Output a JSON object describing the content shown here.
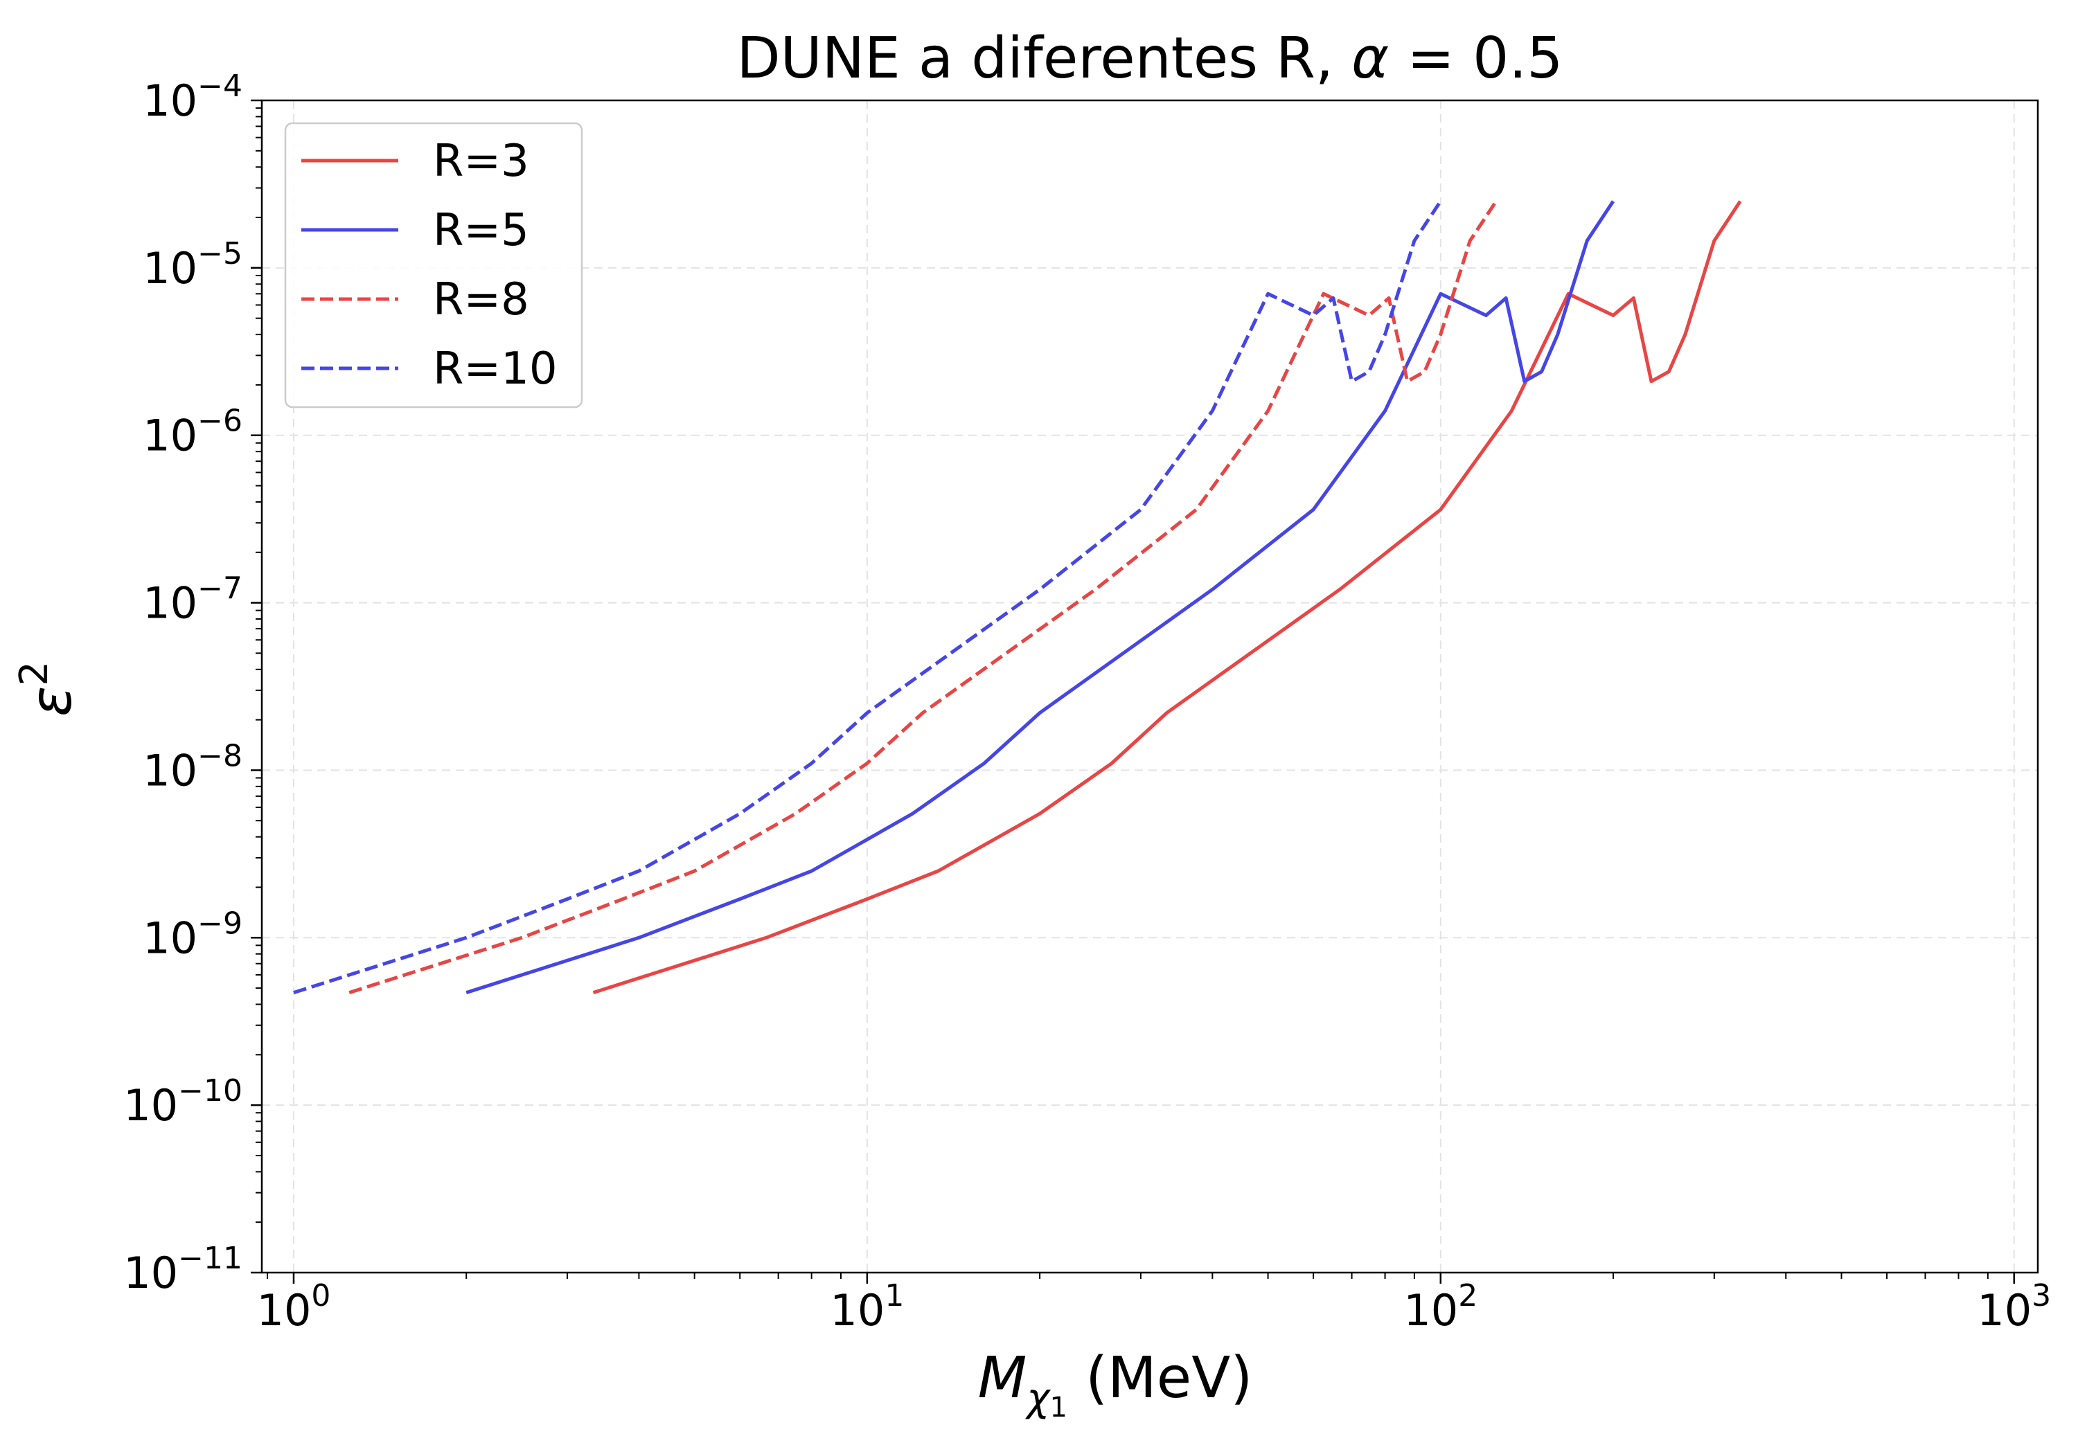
{
  "chart_data": {
    "type": "line",
    "title": "DUNE a diferentes R, α = 0.5",
    "title_text": "DUNE a diferentes R, ",
    "title_alpha": "α",
    "title_value": " = 0.5",
    "xlabel_main": "M",
    "xlabel_sub": "χ",
    "xlabel_subsub": "1",
    "xlabel_unit": " (MeV)",
    "ylabel_main": "ε",
    "ylabel_sup": "2",
    "xscale": "log",
    "yscale": "log",
    "xlim": [
      0.88,
      1100
    ],
    "ylim": [
      1e-11,
      0.0001
    ],
    "xticks": [
      {
        "value": 1,
        "base": "10",
        "exp": "0"
      },
      {
        "value": 10,
        "base": "10",
        "exp": "1"
      },
      {
        "value": 100,
        "base": "10",
        "exp": "2"
      },
      {
        "value": 1000,
        "base": "10",
        "exp": "3"
      }
    ],
    "yticks": [
      {
        "value": 1e-11,
        "base": "10",
        "exp": "−11"
      },
      {
        "value": 1e-10,
        "base": "10",
        "exp": "−10"
      },
      {
        "value": 1e-09,
        "base": "10",
        "exp": "−9"
      },
      {
        "value": 1e-08,
        "base": "10",
        "exp": "−8"
      },
      {
        "value": 1e-07,
        "base": "10",
        "exp": "−7"
      },
      {
        "value": 1e-06,
        "base": "10",
        "exp": "−6"
      },
      {
        "value": 1e-05,
        "base": "10",
        "exp": "−5"
      },
      {
        "value": 0.0001,
        "base": "10",
        "exp": "−4"
      }
    ],
    "grid": true,
    "legend_position": "upper-left",
    "series": [
      {
        "name": "R=3",
        "color": "#e84545",
        "dashed": false,
        "points": [
          [
            3.33,
            4.7e-10
          ],
          [
            6.67,
            1e-09
          ],
          [
            10,
            1.7e-09
          ],
          [
            13.3,
            2.5e-09
          ],
          [
            20,
            5.5e-09
          ],
          [
            26.7,
            1.1e-08
          ],
          [
            33.3,
            2.2e-08
          ],
          [
            66.7,
            1.2e-07
          ],
          [
            100,
            3.6e-07
          ],
          [
            133,
            1.4e-06
          ],
          [
            167,
            7e-06
          ],
          [
            200,
            5.2e-06
          ],
          [
            217,
            6.6e-06
          ],
          [
            233,
            2.1e-06
          ],
          [
            250,
            2.4e-06
          ],
          [
            267,
            4e-06
          ],
          [
            300,
            1.45e-05
          ],
          [
            333,
            2.5e-05
          ]
        ]
      },
      {
        "name": "R=5",
        "color": "#4545e8",
        "dashed": false,
        "points": [
          [
            2,
            4.7e-10
          ],
          [
            4,
            1e-09
          ],
          [
            6,
            1.7e-09
          ],
          [
            8,
            2.5e-09
          ],
          [
            12,
            5.5e-09
          ],
          [
            16,
            1.1e-08
          ],
          [
            20,
            2.2e-08
          ],
          [
            40,
            1.2e-07
          ],
          [
            60,
            3.6e-07
          ],
          [
            80,
            1.4e-06
          ],
          [
            100,
            7e-06
          ],
          [
            120,
            5.2e-06
          ],
          [
            130,
            6.6e-06
          ],
          [
            140,
            2.1e-06
          ],
          [
            150,
            2.4e-06
          ],
          [
            160,
            4e-06
          ],
          [
            180,
            1.45e-05
          ],
          [
            200,
            2.5e-05
          ]
        ]
      },
      {
        "name": "R=8",
        "color": "#e84545",
        "dashed": true,
        "points": [
          [
            1.25,
            4.7e-10
          ],
          [
            2.5,
            1e-09
          ],
          [
            3.75,
            1.7e-09
          ],
          [
            5,
            2.5e-09
          ],
          [
            7.5,
            5.5e-09
          ],
          [
            10,
            1.1e-08
          ],
          [
            12.5,
            2.2e-08
          ],
          [
            25,
            1.2e-07
          ],
          [
            37.5,
            3.6e-07
          ],
          [
            50,
            1.4e-06
          ],
          [
            62.5,
            7e-06
          ],
          [
            75,
            5.2e-06
          ],
          [
            81.25,
            6.6e-06
          ],
          [
            87.5,
            2.1e-06
          ],
          [
            93.75,
            2.4e-06
          ],
          [
            100,
            4e-06
          ],
          [
            112.5,
            1.45e-05
          ],
          [
            125,
            2.5e-05
          ]
        ]
      },
      {
        "name": "R=10",
        "color": "#4545e8",
        "dashed": true,
        "points": [
          [
            1,
            4.7e-10
          ],
          [
            2,
            1e-09
          ],
          [
            3,
            1.7e-09
          ],
          [
            4,
            2.5e-09
          ],
          [
            6,
            5.5e-09
          ],
          [
            8,
            1.1e-08
          ],
          [
            10,
            2.2e-08
          ],
          [
            20,
            1.2e-07
          ],
          [
            30,
            3.6e-07
          ],
          [
            40,
            1.4e-06
          ],
          [
            50,
            7e-06
          ],
          [
            60,
            5.2e-06
          ],
          [
            65,
            6.6e-06
          ],
          [
            70,
            2.1e-06
          ],
          [
            75,
            2.4e-06
          ],
          [
            80,
            4e-06
          ],
          [
            90,
            1.45e-05
          ],
          [
            100,
            2.5e-05
          ]
        ]
      }
    ]
  }
}
